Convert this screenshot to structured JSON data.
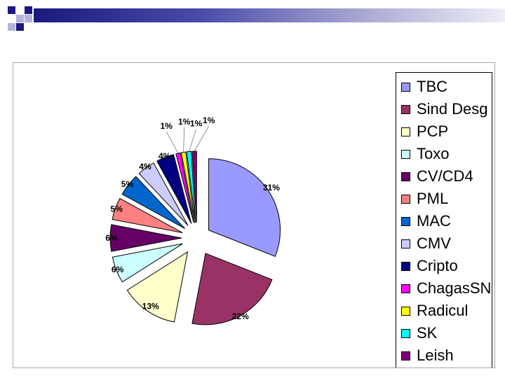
{
  "chart_data": {
    "type": "pie",
    "exploded": true,
    "categories": [
      "TBC",
      "Sind Desg",
      "PCP",
      "Toxo",
      "CV/CD4",
      "PML",
      "MAC",
      "CMV",
      "Cripto",
      "ChagasSN",
      "Radicul",
      "SK",
      "Leish"
    ],
    "values": [
      31,
      22,
      13,
      6,
      6,
      5,
      5,
      4,
      4,
      1,
      1,
      1,
      1
    ],
    "data_labels": [
      "31%",
      "22%",
      "13%",
      "6%",
      "6%",
      "5%",
      "5%",
      "4%",
      "4%",
      "1%",
      "1%",
      "1%",
      "1%"
    ],
    "colors": [
      "#9999ff",
      "#993366",
      "#ffffcc",
      "#ccffff",
      "#660066",
      "#ff8080",
      "#0066cc",
      "#ccccff",
      "#000080",
      "#ff00ff",
      "#ffff00",
      "#00ffff",
      "#800080"
    ],
    "legend_placement": "right"
  }
}
